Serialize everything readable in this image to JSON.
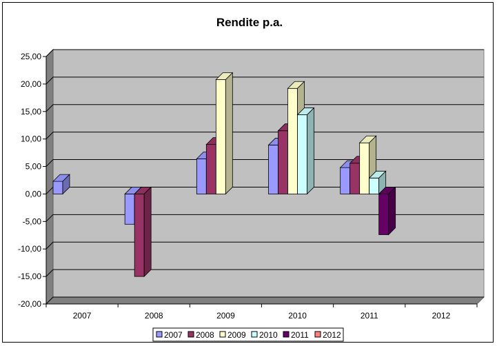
{
  "chart_data": {
    "type": "bar",
    "title": "Rendite p.a.",
    "xlabel": "",
    "ylabel": "",
    "categories": [
      "2007",
      "2008",
      "2009",
      "2010",
      "2011",
      "2012"
    ],
    "ylim": [
      -20,
      25
    ],
    "yticks": [
      25,
      20,
      15,
      10,
      5,
      0,
      -5,
      -10,
      -15,
      -20
    ],
    "ytick_labels": [
      "25,00",
      "20,00",
      "15,00",
      "10,00",
      "5,00",
      "0,00",
      "-5,00",
      "-10,00",
      "-15,00",
      "-20,00"
    ],
    "grid": true,
    "legend_position": "bottom",
    "series": [
      {
        "name": "2007",
        "color": "#9999ff",
        "values": [
          2.3,
          -5.5,
          6.4,
          8.9,
          4.8,
          null
        ]
      },
      {
        "name": "2008",
        "color": "#993366",
        "values": [
          null,
          -15.0,
          9.0,
          11.5,
          5.6,
          null
        ]
      },
      {
        "name": "2009",
        "color": "#ffffcc",
        "values": [
          null,
          null,
          20.8,
          19.2,
          9.3,
          null
        ]
      },
      {
        "name": "2010",
        "color": "#ccffff",
        "values": [
          null,
          null,
          null,
          14.4,
          2.9,
          null
        ]
      },
      {
        "name": "2011",
        "color": "#660066",
        "values": [
          null,
          null,
          null,
          null,
          -7.4,
          null
        ]
      },
      {
        "name": "2012",
        "color": "#ff8080",
        "values": [
          null,
          null,
          null,
          null,
          null,
          null
        ]
      }
    ],
    "colors": {
      "plot_background": "#c0c0c0",
      "floor": "#808080",
      "wall_side": "#808080"
    }
  }
}
